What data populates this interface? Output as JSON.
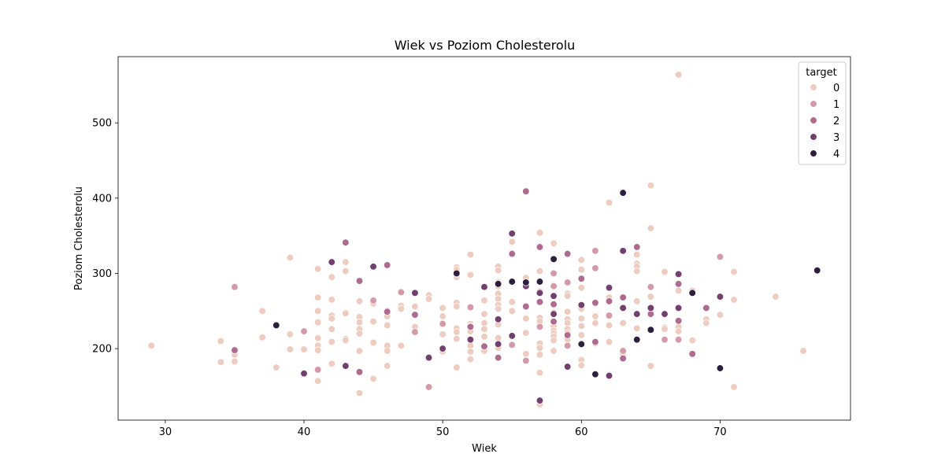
{
  "chart_data": {
    "type": "scatter",
    "title": "Wiek vs Poziom Cholesterolu",
    "xlabel": "Wiek",
    "ylabel": "Poziom Cholesterolu",
    "xlim": [
      26.6,
      79.4
    ],
    "ylim": [
      105,
      588
    ],
    "xticks": [
      30,
      40,
      50,
      60,
      70
    ],
    "yticks": [
      200,
      300,
      400,
      500
    ],
    "grid": false,
    "legend": {
      "title": "target",
      "placement": "top-right",
      "entries": [
        {
          "label": "0",
          "color": "#eecdc0"
        },
        {
          "label": "1",
          "color": "#d49aa8"
        },
        {
          "label": "2",
          "color": "#af6a8f"
        },
        {
          "label": "3",
          "color": "#733f6f"
        },
        {
          "label": "4",
          "color": "#2c1e3d"
        }
      ]
    },
    "series": [
      {
        "name": "0",
        "color": "#eecdc0",
        "points": [
          [
            29,
            204
          ],
          [
            34,
            210
          ],
          [
            34,
            182
          ],
          [
            35,
            192
          ],
          [
            35,
            183
          ],
          [
            37,
            250
          ],
          [
            37,
            215
          ],
          [
            38,
            175
          ],
          [
            39,
            321
          ],
          [
            39,
            219
          ],
          [
            39,
            199
          ],
          [
            40,
            199
          ],
          [
            41,
            306
          ],
          [
            41,
            268
          ],
          [
            41,
            250
          ],
          [
            41,
            235
          ],
          [
            41,
            214
          ],
          [
            41,
            204
          ],
          [
            41,
            198
          ],
          [
            41,
            157
          ],
          [
            42,
            295
          ],
          [
            42,
            265
          ],
          [
            42,
            244
          ],
          [
            42,
            240
          ],
          [
            42,
            226
          ],
          [
            42,
            209
          ],
          [
            42,
            180
          ],
          [
            43,
            315
          ],
          [
            43,
            303
          ],
          [
            43,
            247
          ],
          [
            43,
            213
          ],
          [
            43,
            211
          ],
          [
            44,
            263
          ],
          [
            44,
            242
          ],
          [
            44,
            235
          ],
          [
            44,
            226
          ],
          [
            44,
            220
          ],
          [
            44,
            197
          ],
          [
            44,
            141
          ],
          [
            45,
            260
          ],
          [
            45,
            236
          ],
          [
            45,
            208
          ],
          [
            45,
            160
          ],
          [
            46,
            243
          ],
          [
            46,
            231
          ],
          [
            46,
            204
          ],
          [
            46,
            197
          ],
          [
            46,
            177
          ],
          [
            47,
            257
          ],
          [
            47,
            253
          ],
          [
            47,
            204
          ],
          [
            48,
            256
          ],
          [
            48,
            245
          ],
          [
            48,
            229
          ],
          [
            49,
            271
          ],
          [
            49,
            266
          ],
          [
            50,
            254
          ],
          [
            50,
            243
          ],
          [
            50,
            219
          ],
          [
            50,
            196
          ],
          [
            51,
            308
          ],
          [
            51,
            305
          ],
          [
            51,
            295
          ],
          [
            51,
            261
          ],
          [
            51,
            256
          ],
          [
            51,
            227
          ],
          [
            51,
            222
          ],
          [
            51,
            213
          ],
          [
            51,
            175
          ],
          [
            52,
            325
          ],
          [
            52,
            298
          ],
          [
            52,
            233
          ],
          [
            52,
            230
          ],
          [
            52,
            223
          ],
          [
            52,
            212
          ],
          [
            52,
            204
          ],
          [
            52,
            196
          ],
          [
            52,
            186
          ],
          [
            53,
            264
          ],
          [
            53,
            246
          ],
          [
            53,
            234
          ],
          [
            53,
            226
          ],
          [
            53,
            216
          ],
          [
            53,
            197
          ],
          [
            54,
            309
          ],
          [
            54,
            304
          ],
          [
            54,
            288
          ],
          [
            54,
            283
          ],
          [
            54,
            273
          ],
          [
            54,
            266
          ],
          [
            54,
            258
          ],
          [
            54,
            253
          ],
          [
            54,
            239
          ],
          [
            54,
            232
          ],
          [
            54,
            214
          ],
          [
            54,
            201
          ],
          [
            55,
            342
          ],
          [
            55,
            327
          ],
          [
            55,
            262
          ],
          [
            55,
            250
          ],
          [
            56,
            294
          ],
          [
            56,
            288
          ],
          [
            56,
            283
          ],
          [
            56,
            256
          ],
          [
            56,
            240
          ],
          [
            56,
            221
          ],
          [
            56,
            193
          ],
          [
            57,
            354
          ],
          [
            57,
            303
          ],
          [
            57,
            276
          ],
          [
            57,
            273
          ],
          [
            57,
            241
          ],
          [
            57,
            236
          ],
          [
            57,
            229
          ],
          [
            57,
            207
          ],
          [
            57,
            201
          ],
          [
            57,
            192
          ],
          [
            57,
            168
          ],
          [
            57,
            126
          ],
          [
            58,
            340
          ],
          [
            58,
            318
          ],
          [
            58,
            300
          ],
          [
            58,
            284
          ],
          [
            58,
            270
          ],
          [
            58,
            248
          ],
          [
            58,
            230
          ],
          [
            58,
            224
          ],
          [
            58,
            220
          ],
          [
            58,
            216
          ],
          [
            58,
            211
          ],
          [
            58,
            197
          ],
          [
            59,
            274
          ],
          [
            59,
            273
          ],
          [
            59,
            270
          ],
          [
            59,
            249
          ],
          [
            59,
            239
          ],
          [
            59,
            234
          ],
          [
            59,
            226
          ],
          [
            59,
            221
          ],
          [
            59,
            212
          ],
          [
            59,
            204
          ],
          [
            60,
            318
          ],
          [
            60,
            305
          ],
          [
            60,
            281
          ],
          [
            60,
            258
          ],
          [
            60,
            253
          ],
          [
            60,
            240
          ],
          [
            60,
            230
          ],
          [
            60,
            218
          ],
          [
            60,
            185
          ],
          [
            60,
            178
          ],
          [
            61,
            260
          ],
          [
            61,
            243
          ],
          [
            61,
            234
          ],
          [
            61,
            207
          ],
          [
            62,
            394
          ],
          [
            62,
            268
          ],
          [
            62,
            263
          ],
          [
            62,
            244
          ],
          [
            62,
            231
          ],
          [
            62,
            209
          ],
          [
            63,
            254
          ],
          [
            63,
            234
          ],
          [
            63,
            193
          ],
          [
            64,
            325
          ],
          [
            64,
            313
          ],
          [
            64,
            309
          ],
          [
            64,
            303
          ],
          [
            64,
            263
          ],
          [
            64,
            246
          ],
          [
            64,
            227
          ],
          [
            64,
            211
          ],
          [
            65,
            417
          ],
          [
            65,
            360
          ],
          [
            65,
            269
          ],
          [
            65,
            254
          ],
          [
            65,
            248
          ],
          [
            65,
            177
          ],
          [
            66,
            302
          ],
          [
            66,
            228
          ],
          [
            66,
            226
          ],
          [
            67,
            564
          ],
          [
            67,
            286
          ],
          [
            67,
            277
          ],
          [
            67,
            254
          ],
          [
            67,
            229
          ],
          [
            67,
            223
          ],
          [
            68,
            277
          ],
          [
            68,
            274
          ],
          [
            68,
            211
          ],
          [
            69,
            239
          ],
          [
            69,
            234
          ],
          [
            70,
            245
          ],
          [
            71,
            302
          ],
          [
            71,
            265
          ],
          [
            71,
            149
          ],
          [
            74,
            269
          ],
          [
            76,
            197
          ]
        ]
      },
      {
        "name": "1",
        "color": "#d49aa8",
        "points": [
          [
            35,
            282
          ],
          [
            40,
            223
          ],
          [
            41,
            172
          ],
          [
            45,
            264
          ],
          [
            46,
            250
          ],
          [
            47,
            275
          ],
          [
            48,
            222
          ],
          [
            49,
            149
          ],
          [
            50,
            233
          ],
          [
            52,
            255
          ],
          [
            55,
            205
          ],
          [
            56,
            184
          ],
          [
            57,
            229
          ],
          [
            58,
            300
          ],
          [
            58,
            283
          ],
          [
            59,
            288
          ],
          [
            59,
            204
          ],
          [
            60,
            293
          ],
          [
            61,
            330
          ],
          [
            61,
            307
          ],
          [
            62,
            244
          ],
          [
            63,
            197
          ],
          [
            64,
            335
          ],
          [
            65,
            282
          ],
          [
            66,
            212
          ],
          [
            67,
            212
          ],
          [
            70,
            322
          ]
        ]
      },
      {
        "name": "2",
        "color": "#af6a8f",
        "points": [
          [
            35,
            198
          ],
          [
            40,
            167
          ],
          [
            42,
            315
          ],
          [
            43,
            341
          ],
          [
            44,
            290
          ],
          [
            44,
            169
          ],
          [
            46,
            311
          ],
          [
            46,
            249
          ],
          [
            48,
            245
          ],
          [
            51,
            299
          ],
          [
            52,
            229
          ],
          [
            53,
            203
          ],
          [
            54,
            188
          ],
          [
            55,
            326
          ],
          [
            56,
            409
          ],
          [
            56,
            256
          ],
          [
            57,
            335
          ],
          [
            57,
            262
          ],
          [
            58,
            259
          ],
          [
            58,
            236
          ],
          [
            59,
            326
          ],
          [
            59,
            218
          ],
          [
            60,
            293
          ],
          [
            60,
            258
          ],
          [
            61,
            261
          ],
          [
            61,
            209
          ],
          [
            62,
            263
          ],
          [
            63,
            268
          ],
          [
            63,
            187
          ],
          [
            64,
            335
          ],
          [
            65,
            246
          ],
          [
            66,
            246
          ],
          [
            67,
            286
          ],
          [
            67,
            237
          ],
          [
            68,
            193
          ],
          [
            69,
            254
          ]
        ]
      },
      {
        "name": "3",
        "color": "#733f6f",
        "points": [
          [
            40,
            167
          ],
          [
            42,
            315
          ],
          [
            43,
            177
          ],
          [
            45,
            309
          ],
          [
            48,
            274
          ],
          [
            49,
            188
          ],
          [
            50,
            200
          ],
          [
            52,
            212
          ],
          [
            53,
            282
          ],
          [
            54,
            239
          ],
          [
            54,
            206
          ],
          [
            55,
            353
          ],
          [
            55,
            217
          ],
          [
            56,
            283
          ],
          [
            57,
            274
          ],
          [
            57,
            131
          ],
          [
            58,
            270
          ],
          [
            58,
            246
          ],
          [
            59,
            176
          ],
          [
            60,
            258
          ],
          [
            61,
            166
          ],
          [
            62,
            281
          ],
          [
            62,
            164
          ],
          [
            63,
            330
          ],
          [
            63,
            254
          ],
          [
            64,
            246
          ],
          [
            65,
            254
          ],
          [
            66,
            246
          ],
          [
            67,
            299
          ],
          [
            67,
            254
          ],
          [
            70,
            269
          ]
        ]
      },
      {
        "name": "4",
        "color": "#2c1e3d",
        "points": [
          [
            38,
            231
          ],
          [
            51,
            300
          ],
          [
            54,
            286
          ],
          [
            55,
            289
          ],
          [
            56,
            288
          ],
          [
            57,
            289
          ],
          [
            58,
            319
          ],
          [
            60,
            206
          ],
          [
            61,
            166
          ],
          [
            63,
            407
          ],
          [
            64,
            212
          ],
          [
            65,
            225
          ],
          [
            68,
            274
          ],
          [
            70,
            174
          ],
          [
            77,
            304
          ]
        ]
      }
    ]
  }
}
